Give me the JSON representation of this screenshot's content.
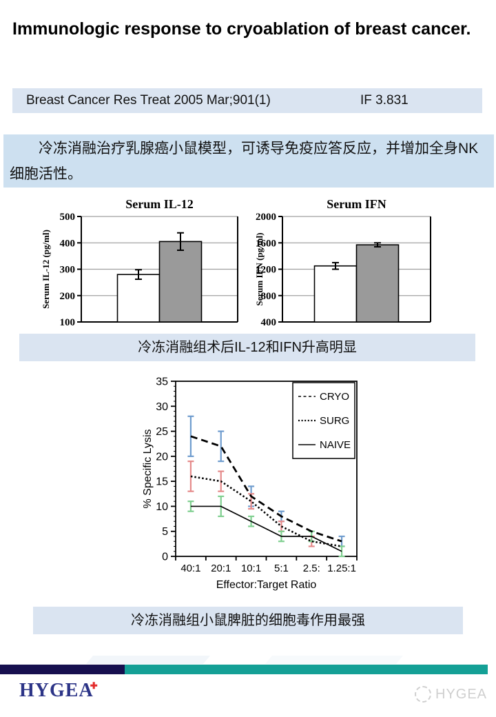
{
  "slide": {
    "title": "Immunologic response to cryoablation of breast cancer.",
    "reference": {
      "journal": "Breast Cancer Res Treat 2005 Mar;901(1)",
      "impact_factor": "IF 3.831"
    },
    "summary": "冷冻消融治疗乳腺癌小鼠模型，可诱导免疫应答反应，并增加全身NK细胞活性。",
    "captions": {
      "serum": "冷冻消融组术后IL-12和IFN升高明显",
      "lysis": "冷冻消融组小鼠脾脏的细胞毒作用最强"
    }
  },
  "chart_data": [
    {
      "type": "bar",
      "title": "Serum IL-12",
      "ylabel": "Serum IL-12 (pg/ml)",
      "ylim": [
        100,
        500
      ],
      "yticks": [
        100,
        200,
        300,
        400,
        500
      ],
      "grid": true,
      "bars": [
        {
          "fill": "white",
          "value": 280,
          "error": 18
        },
        {
          "fill": "gray",
          "value": 405,
          "error": 33
        }
      ]
    },
    {
      "type": "bar",
      "title": "Serum IFN",
      "ylabel": "Serum IFN (pg/ml)",
      "ylim": [
        400,
        2000
      ],
      "yticks": [
        400,
        800,
        1200,
        1600,
        2000
      ],
      "grid": true,
      "bars": [
        {
          "fill": "white",
          "value": 1250,
          "error": 50
        },
        {
          "fill": "gray",
          "value": 1570,
          "error": 30
        }
      ]
    },
    {
      "type": "line",
      "title": "",
      "xlabel": "Effector:Target Ratio",
      "ylabel": "% Specific Lysis",
      "categories": [
        "40:1",
        "20:1",
        "10:1",
        "5:1",
        "2.5:",
        "1.25:1"
      ],
      "ylim": [
        0,
        35
      ],
      "yticks": [
        0,
        5,
        10,
        15,
        20,
        25,
        30,
        35
      ],
      "legend_position": "top-right",
      "series": [
        {
          "name": "CRYO",
          "line_style": "dashed",
          "error_color": "#6f9cce",
          "values": [
            24,
            22,
            12,
            8,
            5,
            3
          ],
          "errors": [
            4,
            3,
            2,
            1,
            0,
            1
          ]
        },
        {
          "name": "SURG",
          "line_style": "dotted",
          "error_color": "#e58b8b",
          "values": [
            16,
            15,
            11,
            6,
            3,
            2
          ],
          "errors": [
            3,
            2,
            1.5,
            1,
            1,
            0
          ]
        },
        {
          "name": "NAIVE",
          "line_style": "solid",
          "error_color": "#7fcf8f",
          "values": [
            10,
            10,
            7,
            4,
            4,
            1
          ],
          "errors": [
            1,
            2,
            1,
            1,
            1,
            1
          ]
        }
      ]
    }
  ],
  "footer": {
    "logo": "HYGEA",
    "watermark": "HYGEA"
  },
  "colors": {
    "band_bg": "#dae4f1",
    "summary_bg": "#cde0f0",
    "bar_gray": "#9a9a9a",
    "grid_gray": "#a0a0a0",
    "footer_navy": "#17104f",
    "footer_teal": "#14a096",
    "logo_navy": "#2c3487",
    "logo_cross_red": "#e32b2b",
    "watermark_gray": "#cfcfcf"
  }
}
